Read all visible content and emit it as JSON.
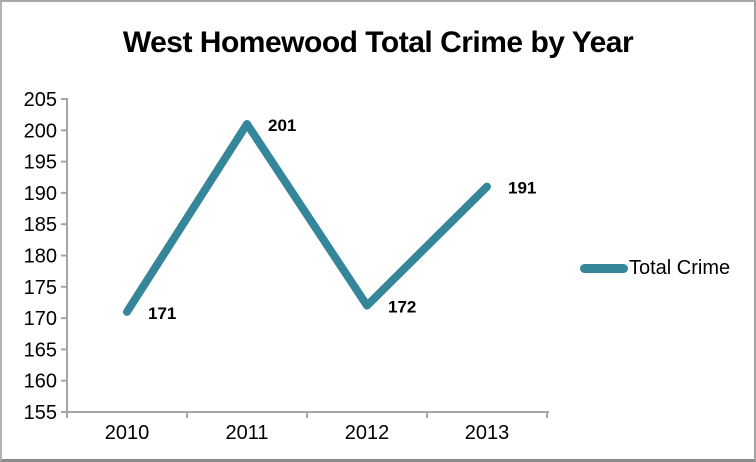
{
  "chart_data": {
    "type": "line",
    "title": "West Homewood Total Crime by Year",
    "categories": [
      "2010",
      "2011",
      "2012",
      "2013"
    ],
    "series": [
      {
        "name": "Total Crime",
        "color": "#35859B",
        "values": [
          171,
          201,
          172,
          191
        ]
      }
    ],
    "ylim": [
      155,
      205
    ],
    "yticks": [
      155,
      160,
      165,
      170,
      175,
      180,
      185,
      190,
      195,
      200,
      205
    ],
    "show_data_labels": true,
    "grid": false,
    "legend_position": "right",
    "axis_color": "#a6a6a6",
    "data_label_color": "#000000",
    "tick_label_color": "#000000"
  }
}
